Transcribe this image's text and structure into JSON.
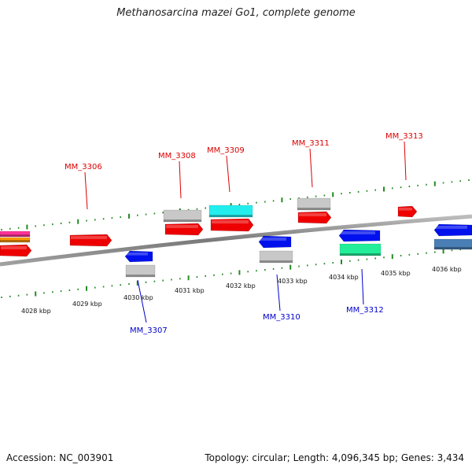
{
  "title": "Methanosarcina mazei Go1, complete genome",
  "footer": {
    "accession": "Accession: NC_003901",
    "stats": "Topology: circular; Length: 4,096,345 bp; Genes: 3,434"
  },
  "colors": {
    "forward_label": "#dd0000",
    "reverse_label": "#0000cc",
    "ticks": "#228b22",
    "backbone": "#888888"
  },
  "scale_labels": [
    "4028 kbp",
    "4029 kbp",
    "4030 kbp",
    "4031 kbp",
    "4032 kbp",
    "4033 kbp",
    "4034 kbp",
    "4035 kbp",
    "4036 kbp"
  ],
  "gene_labels": {
    "forward": [
      "MM_3306",
      "MM_3308",
      "MM_3309",
      "MM_3311",
      "MM_3313"
    ],
    "reverse": [
      "MM_3307",
      "MM_3310",
      "MM_3312"
    ]
  }
}
